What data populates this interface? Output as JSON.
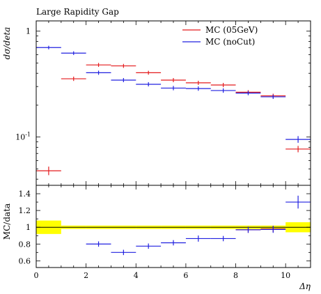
{
  "chart_data": [
    {
      "type": "line",
      "style": "histogram-step-with-errorbars",
      "title": "Large Rapidity Gap",
      "ylabel": "dσ/deta",
      "yscale": "log",
      "xlim": [
        0,
        11
      ],
      "ylim": [
        0.035,
        1.25
      ],
      "yticks": [
        {
          "v": 1,
          "label": "1"
        },
        {
          "v": 0.1,
          "label": "10^{-1}"
        }
      ],
      "legend": {
        "placement": "top-right"
      },
      "bin_edges": [
        0,
        1,
        2,
        3,
        4,
        5,
        6,
        7,
        8,
        9,
        10,
        11
      ],
      "series": [
        {
          "name": "MC (05GeV)",
          "color": "#e41a1c",
          "values": [
            0.048,
            0.355,
            0.48,
            0.47,
            0.405,
            0.345,
            0.325,
            0.31,
            0.265,
            0.245,
            0.077
          ],
          "errors": [
            0.003,
            0.006,
            0.006,
            0.006,
            0.005,
            0.005,
            0.005,
            0.005,
            0.004,
            0.004,
            0.003
          ]
        },
        {
          "name": "MC (noCut)",
          "color": "#2020e0",
          "values": [
            0.7,
            0.62,
            0.405,
            0.345,
            0.315,
            0.29,
            0.287,
            0.275,
            0.26,
            0.24,
            0.095
          ],
          "errors": [
            0.006,
            0.006,
            0.006,
            0.005,
            0.005,
            0.005,
            0.005,
            0.005,
            0.004,
            0.004,
            0.004
          ]
        }
      ]
    },
    {
      "type": "line",
      "style": "ratio-histogram",
      "ylabel": "MC/data",
      "xlabel": "Δη",
      "xlim": [
        0,
        11
      ],
      "ylim": [
        0.52,
        1.5
      ],
      "yticks": [
        {
          "v": 0.6,
          "label": "0.6"
        },
        {
          "v": 0.8,
          "label": "0.8"
        },
        {
          "v": 1,
          "label": "1"
        },
        {
          "v": 1.2,
          "label": "1.2"
        },
        {
          "v": 1.4,
          "label": "1.4"
        }
      ],
      "xticks": [
        {
          "v": 0,
          "label": "0"
        },
        {
          "v": 2,
          "label": "2"
        },
        {
          "v": 4,
          "label": "4"
        },
        {
          "v": 6,
          "label": "6"
        },
        {
          "v": 8,
          "label": "8"
        },
        {
          "v": 10,
          "label": "10"
        }
      ],
      "band": {
        "color": "#ffff00",
        "halfwidths": [
          0.08,
          0.02,
          0.02,
          0.02,
          0.02,
          0.02,
          0.02,
          0.02,
          0.02,
          0.02,
          0.06
        ]
      },
      "series": [
        {
          "name": "MC (05GeV)",
          "color": "#e41a1c",
          "values": [
            null,
            null,
            null,
            null,
            null,
            null,
            null,
            null,
            0.97,
            0.98,
            null
          ],
          "errors": [
            null,
            null,
            null,
            null,
            null,
            null,
            null,
            null,
            0.02,
            0.02,
            null
          ]
        },
        {
          "name": "MC (noCut)",
          "color": "#2020e0",
          "values": [
            null,
            null,
            0.8,
            0.7,
            0.775,
            0.815,
            0.865,
            0.865,
            0.97,
            0.975,
            1.3
          ],
          "errors": [
            null,
            null,
            0.015,
            0.015,
            0.015,
            0.015,
            0.02,
            0.015,
            0.02,
            0.025,
            0.06
          ]
        }
      ]
    }
  ]
}
